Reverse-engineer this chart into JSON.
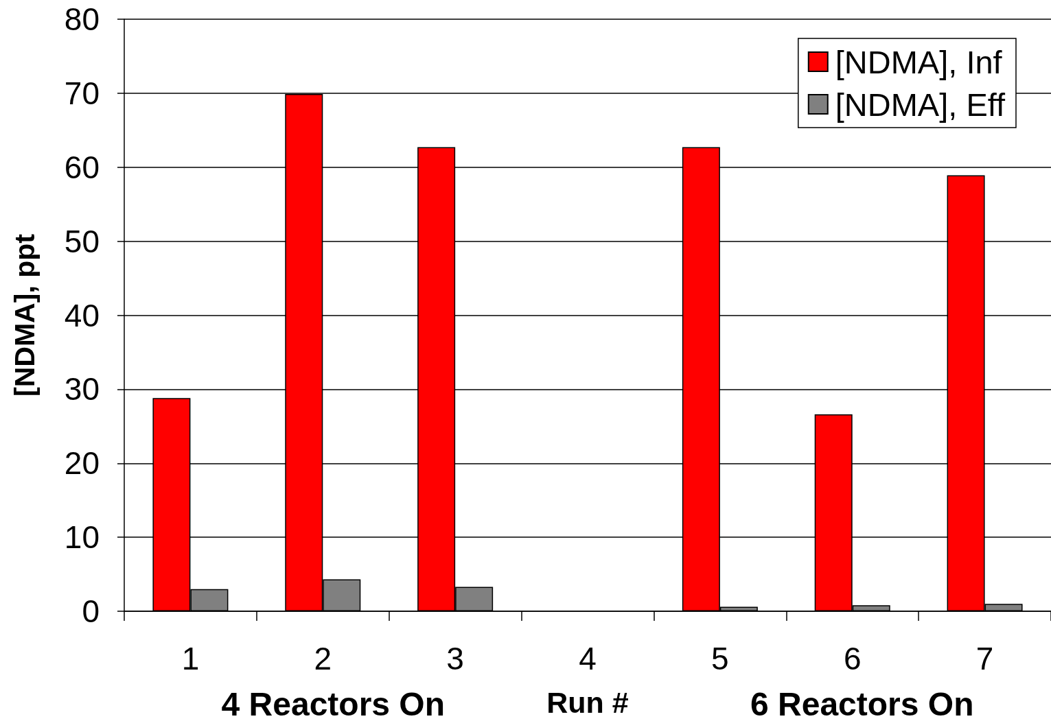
{
  "chart_data": {
    "type": "bar",
    "xlabel": "Run #",
    "ylabel": "[NDMA], ppt",
    "categories": [
      "1",
      "2",
      "3",
      "4",
      "5",
      "6",
      "7"
    ],
    "series": [
      {
        "name": "[NDMA], Inf",
        "color": "#ff0000",
        "values": [
          28.8,
          69.9,
          62.7,
          null,
          62.7,
          26.6,
          58.9
        ]
      },
      {
        "name": "[NDMA], Eff",
        "color": "#808080",
        "values": [
          3.0,
          4.3,
          3.3,
          null,
          0.6,
          0.8,
          1.0
        ]
      }
    ],
    "ylim": [
      0,
      80
    ],
    "yticks": [
      0,
      10,
      20,
      30,
      40,
      50,
      60,
      70,
      80
    ],
    "grid": "y",
    "legend": "top right",
    "annotations": [
      "4 Reactors On",
      "6 Reactors On"
    ]
  }
}
